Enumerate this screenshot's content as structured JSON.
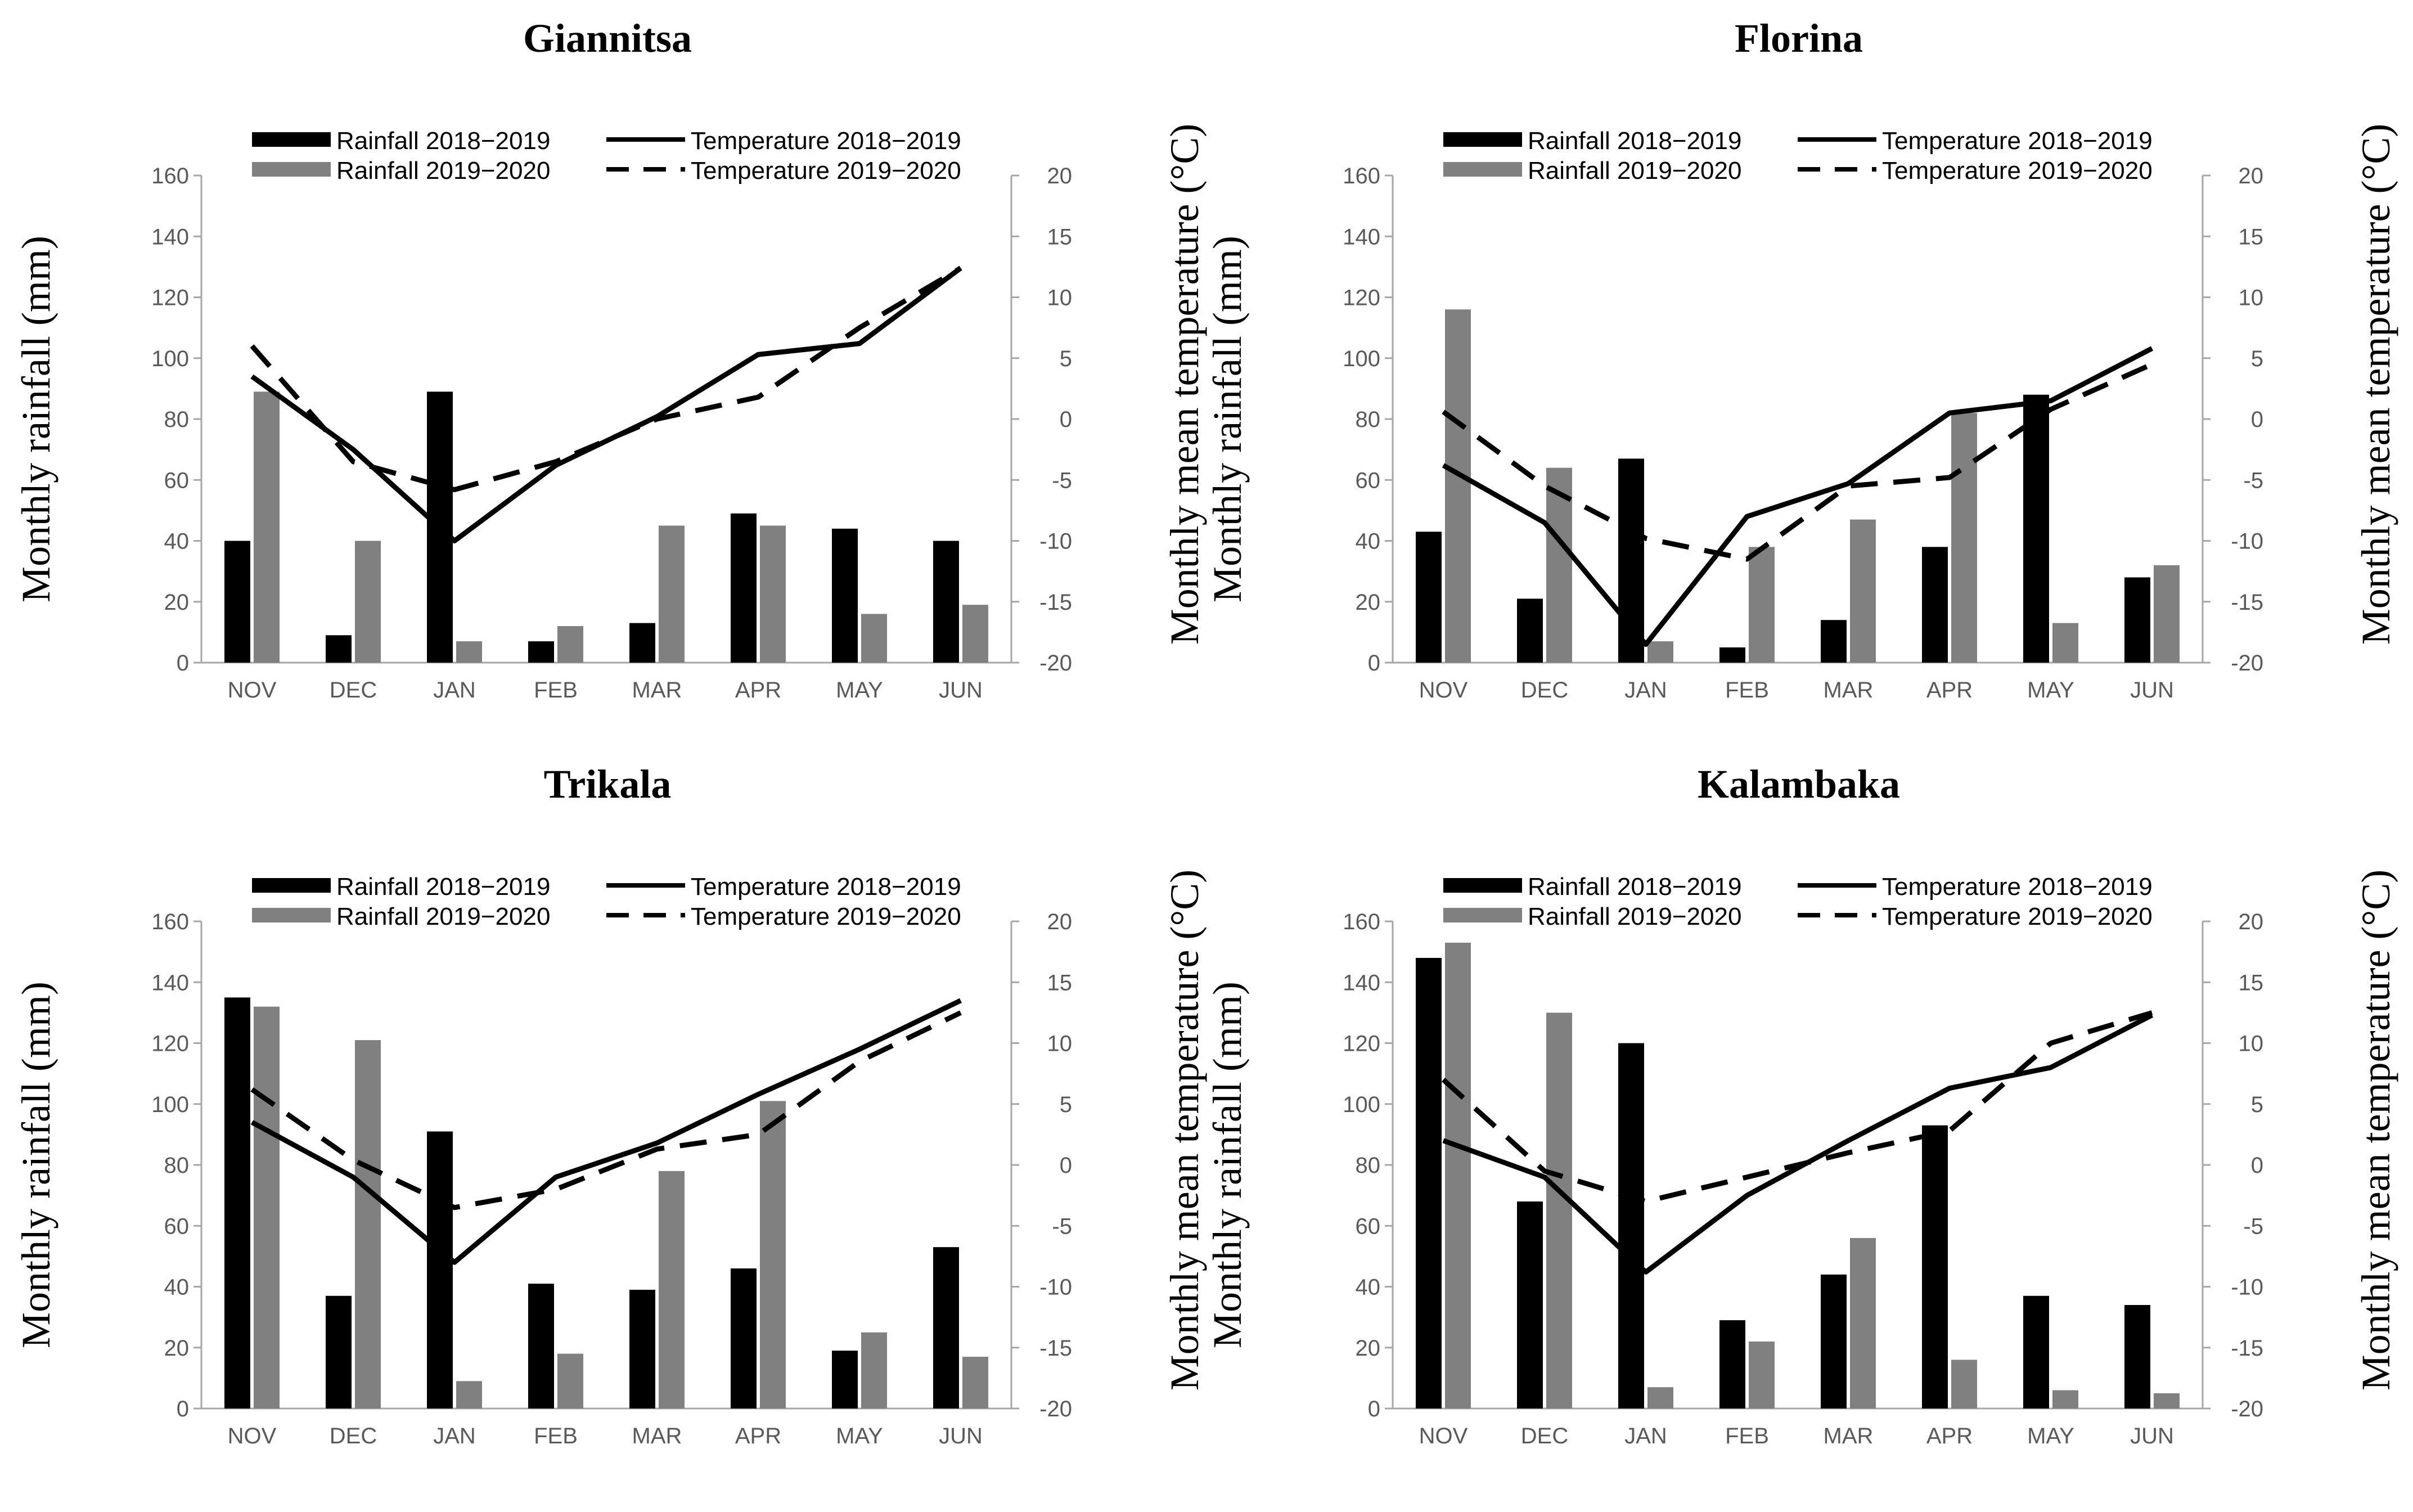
{
  "chart_data": [
    {
      "type": "bar",
      "title": "Giannitsa",
      "categories": [
        "NOV",
        "DEC",
        "JAN",
        "FEB",
        "MAR",
        "APR",
        "MAY",
        "JUN"
      ],
      "ylabel": "Monthly rainfall (mm)",
      "y2label": "Monthly mean temperature (°C)",
      "ylim": [
        0,
        160
      ],
      "y2lim": [
        -20,
        20
      ],
      "yticks": [
        "0",
        "20",
        "40",
        "60",
        "80",
        "100",
        "120",
        "140",
        "160"
      ],
      "y2ticks": [
        "-20",
        "-15",
        "-10",
        "-5",
        "0",
        "5",
        "10",
        "15",
        "20"
      ],
      "series": [
        {
          "name": "Rainfall 2018−2019",
          "kind": "bar",
          "color": "#000000",
          "values": [
            40,
            9,
            89,
            7,
            13,
            49,
            44,
            40
          ]
        },
        {
          "name": "Rainfall 2019−2020",
          "kind": "bar",
          "color": "#808080",
          "values": [
            89,
            40,
            7,
            12,
            45,
            45,
            16,
            19
          ]
        },
        {
          "name": "Temperature 2018−2019",
          "kind": "line",
          "style": "solid",
          "color": "#000000",
          "values": [
            3.5,
            -2.5,
            -10,
            -3.8,
            0.2,
            5.3,
            6.2,
            12.4
          ]
        },
        {
          "name": "Temperature 2019−2020",
          "kind": "line",
          "style": "dashed",
          "color": "#000000",
          "values": [
            6,
            -3.5,
            -5.8,
            -3.5,
            0,
            1.8,
            7.5,
            12.4
          ]
        }
      ]
    },
    {
      "type": "bar",
      "title": "Florina",
      "categories": [
        "NOV",
        "DEC",
        "JAN",
        "FEB",
        "MAR",
        "APR",
        "MAY",
        "JUN"
      ],
      "ylabel": "Monthly rainfall (mm)",
      "y2label": "Monthly mean temperature (°C)",
      "ylim": [
        0,
        160
      ],
      "y2lim": [
        -20,
        20
      ],
      "yticks": [
        "0",
        "20",
        "40",
        "60",
        "80",
        "100",
        "120",
        "140",
        "160"
      ],
      "y2ticks": [
        "-20",
        "-15",
        "-10",
        "-5",
        "0",
        "5",
        "10",
        "15",
        "20"
      ],
      "series": [
        {
          "name": "Rainfall 2018−2019",
          "kind": "bar",
          "color": "#000000",
          "values": [
            43,
            21,
            67,
            5,
            14,
            38,
            88,
            28
          ]
        },
        {
          "name": "Rainfall 2019−2020",
          "kind": "bar",
          "color": "#808080",
          "values": [
            116,
            64,
            7,
            38,
            47,
            82,
            13,
            32
          ]
        },
        {
          "name": "Temperature 2018−2019",
          "kind": "line",
          "style": "solid",
          "color": "#000000",
          "values": [
            -3.8,
            -8.5,
            -18.5,
            -8,
            -5.3,
            0.5,
            1.5,
            5.8
          ]
        },
        {
          "name": "Temperature 2019−2020",
          "kind": "line",
          "style": "dashed",
          "color": "#000000",
          "values": [
            0.6,
            -5.5,
            -9.8,
            -11.5,
            -5.5,
            -4.8,
            0.8,
            4.5
          ]
        }
      ]
    },
    {
      "type": "bar",
      "title": "Trikala",
      "categories": [
        "NOV",
        "DEC",
        "JAN",
        "FEB",
        "MAR",
        "APR",
        "MAY",
        "JUN"
      ],
      "ylabel": "Monthly rainfall (mm)",
      "y2label": "Monthly mean temperature (°C)",
      "ylim": [
        0,
        160
      ],
      "y2lim": [
        -20,
        20
      ],
      "yticks": [
        "0",
        "20",
        "40",
        "60",
        "80",
        "100",
        "120",
        "140",
        "160"
      ],
      "y2ticks": [
        "-20",
        "-15",
        "-10",
        "-5",
        "0",
        "5",
        "10",
        "15",
        "20"
      ],
      "series": [
        {
          "name": "Rainfall 2018−2019",
          "kind": "bar",
          "color": "#000000",
          "values": [
            135,
            37,
            91,
            41,
            39,
            46,
            19,
            53
          ]
        },
        {
          "name": "Rainfall 2019−2020",
          "kind": "bar",
          "color": "#808080",
          "values": [
            132,
            121,
            9,
            18,
            78,
            101,
            25,
            17
          ]
        },
        {
          "name": "Temperature 2018−2019",
          "kind": "line",
          "style": "solid",
          "color": "#000000",
          "values": [
            3.5,
            -1,
            -8,
            -1,
            1.8,
            5.8,
            9.5,
            13.5
          ]
        },
        {
          "name": "Temperature 2019−2020",
          "kind": "line",
          "style": "dashed",
          "color": "#000000",
          "values": [
            6.2,
            0.4,
            -3.5,
            -2,
            1.3,
            2.5,
            8.5,
            12.5
          ]
        }
      ]
    },
    {
      "type": "bar",
      "title": "Kalambaka",
      "categories": [
        "NOV",
        "DEC",
        "JAN",
        "FEB",
        "MAR",
        "APR",
        "MAY",
        "JUN"
      ],
      "ylabel": "Monthly rainfall (mm)",
      "y2label": "Monthly mean temperature (°C)",
      "ylim": [
        0,
        160
      ],
      "y2lim": [
        -20,
        20
      ],
      "yticks": [
        "0",
        "20",
        "40",
        "60",
        "80",
        "100",
        "120",
        "140",
        "160"
      ],
      "y2ticks": [
        "-20",
        "-15",
        "-10",
        "-5",
        "0",
        "5",
        "10",
        "15",
        "20"
      ],
      "series": [
        {
          "name": "Rainfall 2018−2019",
          "kind": "bar",
          "color": "#000000",
          "values": [
            148,
            68,
            120,
            29,
            44,
            93,
            37,
            34
          ]
        },
        {
          "name": "Rainfall 2019−2020",
          "kind": "bar",
          "color": "#808080",
          "values": [
            153,
            130,
            7,
            22,
            56,
            16,
            6,
            5
          ]
        },
        {
          "name": "Temperature 2018−2019",
          "kind": "line",
          "style": "solid",
          "color": "#000000",
          "values": [
            2,
            -1,
            -8.8,
            -2.5,
            2,
            6.3,
            8,
            12.3
          ]
        },
        {
          "name": "Temperature 2019−2020",
          "kind": "line",
          "style": "dashed",
          "color": "#000000",
          "values": [
            7,
            -0.5,
            -3,
            -1,
            1,
            2.8,
            10,
            12.5
          ]
        }
      ]
    }
  ]
}
